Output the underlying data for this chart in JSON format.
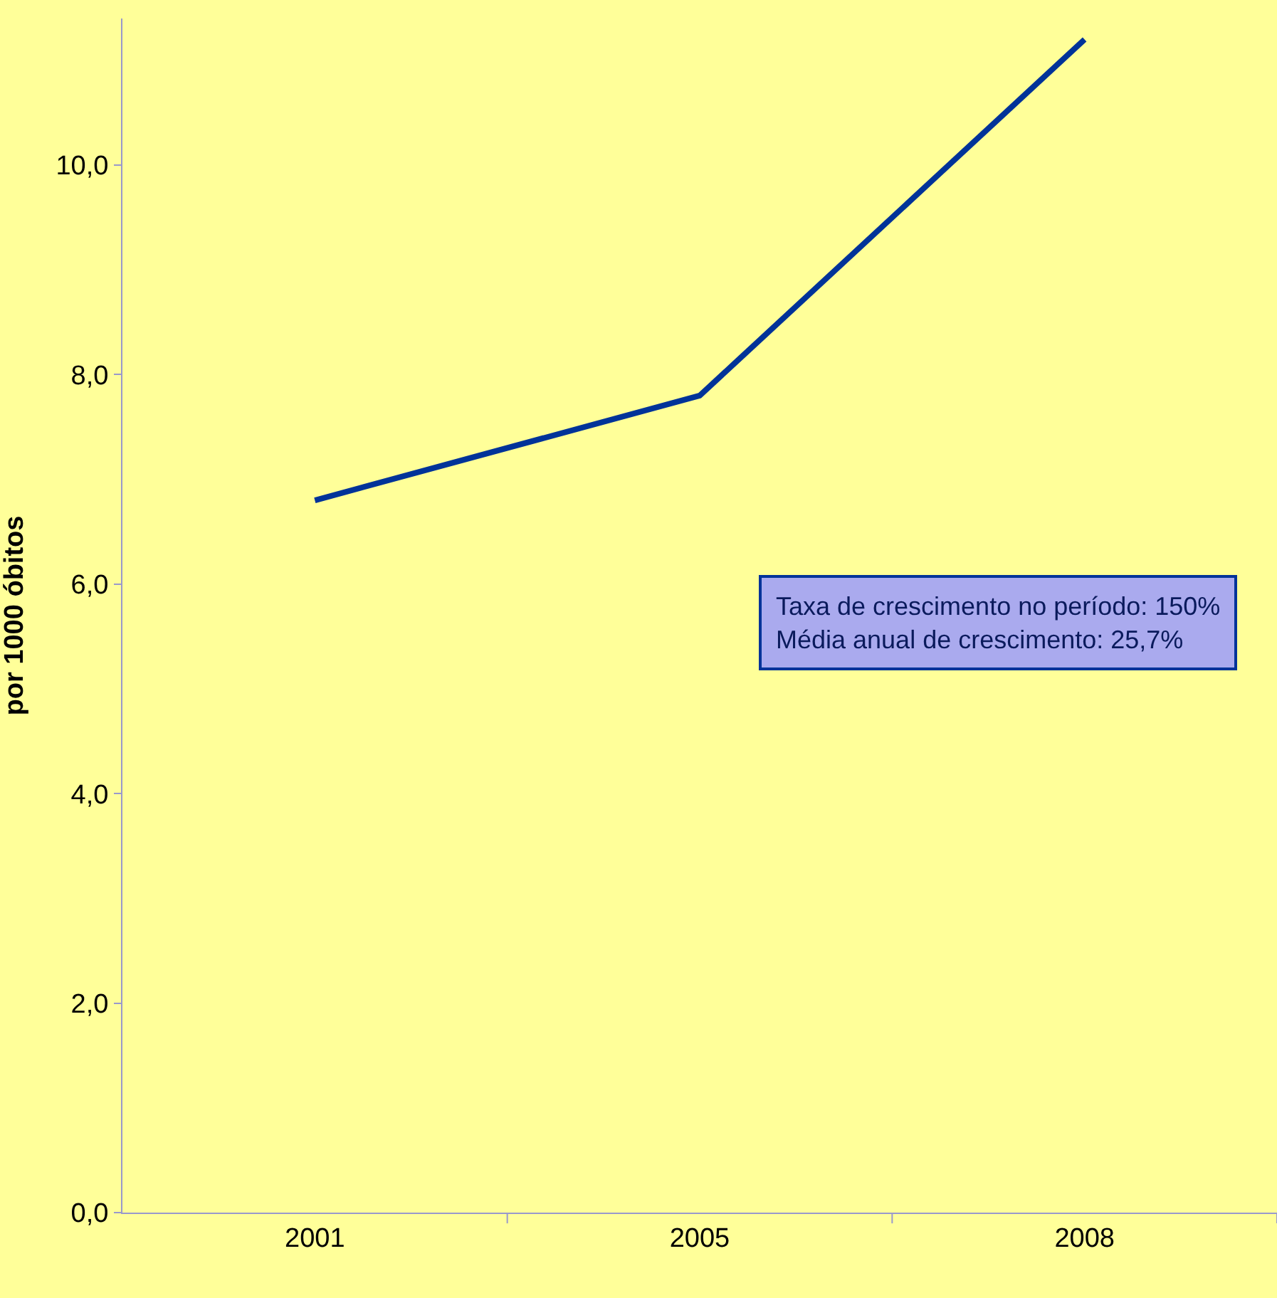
{
  "chart_data": {
    "type": "line",
    "ylabel": "por 1000 óbitos",
    "categories": [
      "2001",
      "2005",
      "2008"
    ],
    "series": [
      {
        "color": "#003399",
        "values": [
          6.8,
          7.8,
          11.2
        ]
      }
    ],
    "ylim": [
      0,
      11.4
    ],
    "yticks": [
      {
        "value": 0,
        "label": "0,0"
      },
      {
        "value": 2,
        "label": "2,0"
      },
      {
        "value": 4,
        "label": "4,0"
      },
      {
        "value": 6,
        "label": "6,0"
      },
      {
        "value": 8,
        "label": "8,0"
      },
      {
        "value": 10,
        "label": "10,0"
      }
    ],
    "annotations": [
      "Taxa de crescimento no período: 150%",
      "Média anual de crescimento: 25,7%"
    ],
    "grid": false,
    "marker": "none",
    "line_style": "solid"
  }
}
